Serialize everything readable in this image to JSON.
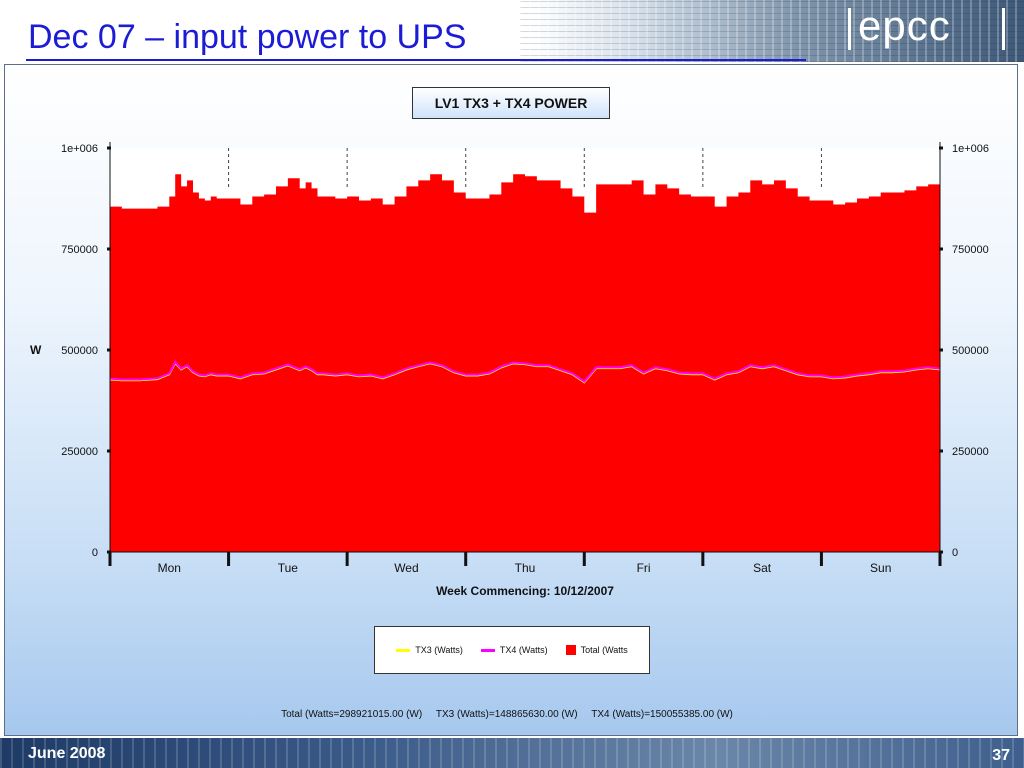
{
  "slide": {
    "title": "Dec 07 – input power to UPS",
    "logo": "epcc",
    "footer_date": "June 2008",
    "page_number": "37"
  },
  "chart_data": {
    "type": "area",
    "title": "LV1 TX3 + TX4 POWER",
    "xlabel": "Week Commencing: 10/12/2007",
    "ylabel": "W",
    "categories": [
      "Mon",
      "Tue",
      "Wed",
      "Thu",
      "Fri",
      "Sat",
      "Sun"
    ],
    "x_unit": "days since start of week",
    "xlim": [
      0,
      7
    ],
    "ylim": [
      0,
      1000000
    ],
    "yticks": [
      0,
      250000,
      500000,
      750000,
      1000000
    ],
    "ytick_labels": [
      "0",
      "250000",
      "500000",
      "750000",
      "1e+006"
    ],
    "legend_position": "bottom",
    "series": [
      {
        "name": "Total (Watts",
        "legend_label": "Total (Watts",
        "style": "area",
        "color": "#ff0000",
        "x": [
          0,
          0.1,
          0.25,
          0.4,
          0.5,
          0.55,
          0.6,
          0.65,
          0.7,
          0.75,
          0.8,
          0.85,
          0.9,
          1.0,
          1.1,
          1.2,
          1.3,
          1.4,
          1.5,
          1.6,
          1.65,
          1.7,
          1.75,
          1.8,
          1.9,
          2.0,
          2.1,
          2.2,
          2.3,
          2.4,
          2.5,
          2.6,
          2.7,
          2.8,
          2.9,
          3.0,
          3.1,
          3.2,
          3.3,
          3.4,
          3.5,
          3.6,
          3.7,
          3.8,
          3.9,
          4.0,
          4.1,
          4.2,
          4.3,
          4.4,
          4.5,
          4.6,
          4.7,
          4.8,
          4.9,
          5.0,
          5.1,
          5.2,
          5.3,
          5.4,
          5.5,
          5.6,
          5.7,
          5.8,
          5.9,
          6.0,
          6.1,
          6.2,
          6.3,
          6.4,
          6.5,
          6.6,
          6.7,
          6.8,
          6.9,
          7.0
        ],
        "y": [
          855000,
          850000,
          850000,
          855000,
          880000,
          935000,
          905000,
          920000,
          890000,
          875000,
          870000,
          880000,
          875000,
          875000,
          860000,
          880000,
          885000,
          905000,
          925000,
          900000,
          915000,
          900000,
          880000,
          880000,
          875000,
          880000,
          870000,
          875000,
          860000,
          880000,
          905000,
          920000,
          935000,
          920000,
          890000,
          875000,
          875000,
          885000,
          915000,
          935000,
          930000,
          920000,
          920000,
          900000,
          880000,
          840000,
          910000,
          910000,
          910000,
          920000,
          885000,
          910000,
          900000,
          885000,
          880000,
          880000,
          855000,
          880000,
          890000,
          920000,
          910000,
          920000,
          900000,
          880000,
          870000,
          870000,
          860000,
          865000,
          875000,
          880000,
          890000,
          890000,
          895000,
          905000,
          910000,
          905000
        ]
      },
      {
        "name": "TX3 (Watts)",
        "legend_label": "TX3 (Watts)",
        "style": "line",
        "color": "#ffff00",
        "x": [
          0,
          0.1,
          0.25,
          0.4,
          0.5,
          0.55,
          0.6,
          0.65,
          0.7,
          0.75,
          0.8,
          0.85,
          0.9,
          1.0,
          1.1,
          1.2,
          1.3,
          1.4,
          1.5,
          1.6,
          1.65,
          1.7,
          1.75,
          1.8,
          1.9,
          2.0,
          2.1,
          2.2,
          2.3,
          2.4,
          2.5,
          2.6,
          2.7,
          2.8,
          2.9,
          3.0,
          3.1,
          3.2,
          3.3,
          3.4,
          3.5,
          3.6,
          3.7,
          3.8,
          3.9,
          4.0,
          4.1,
          4.2,
          4.3,
          4.4,
          4.5,
          4.6,
          4.7,
          4.8,
          4.9,
          5.0,
          5.1,
          5.2,
          5.3,
          5.4,
          5.5,
          5.6,
          5.7,
          5.8,
          5.9,
          6.0,
          6.1,
          6.2,
          6.3,
          6.4,
          6.5,
          6.6,
          6.7,
          6.8,
          6.9,
          7.0
        ],
        "y": [
          427000,
          425000,
          425000,
          428000,
          440000,
          468000,
          452000,
          460000,
          445000,
          437000,
          435000,
          440000,
          437000,
          437000,
          430000,
          440000,
          442000,
          452000,
          462000,
          450000,
          457000,
          450000,
          440000,
          440000,
          437000,
          440000,
          435000,
          437000,
          430000,
          440000,
          452000,
          460000,
          467000,
          460000,
          445000,
          437000,
          437000,
          442000,
          457000,
          467000,
          465000,
          460000,
          460000,
          450000,
          440000,
          420000,
          455000,
          455000,
          455000,
          460000,
          442000,
          455000,
          450000,
          442000,
          440000,
          440000,
          427000,
          440000,
          445000,
          460000,
          455000,
          460000,
          450000,
          440000,
          435000,
          435000,
          430000,
          432000,
          437000,
          440000,
          445000,
          445000,
          447000,
          452000,
          455000,
          452000
        ]
      },
      {
        "name": "TX4 (Watts)",
        "legend_label": "TX4 (Watts)",
        "style": "line",
        "color": "#ff00ff",
        "x": [
          0,
          0.1,
          0.25,
          0.4,
          0.5,
          0.55,
          0.6,
          0.65,
          0.7,
          0.75,
          0.8,
          0.85,
          0.9,
          1.0,
          1.1,
          1.2,
          1.3,
          1.4,
          1.5,
          1.6,
          1.65,
          1.7,
          1.75,
          1.8,
          1.9,
          2.0,
          2.1,
          2.2,
          2.3,
          2.4,
          2.5,
          2.6,
          2.7,
          2.8,
          2.9,
          3.0,
          3.1,
          3.2,
          3.3,
          3.4,
          3.5,
          3.6,
          3.7,
          3.8,
          3.9,
          4.0,
          4.1,
          4.2,
          4.3,
          4.4,
          4.5,
          4.6,
          4.7,
          4.8,
          4.9,
          5.0,
          5.1,
          5.2,
          5.3,
          5.4,
          5.5,
          5.6,
          5.7,
          5.8,
          5.9,
          6.0,
          6.1,
          6.2,
          6.3,
          6.4,
          6.5,
          6.6,
          6.7,
          6.8,
          6.9,
          7.0
        ],
        "y": [
          429000,
          427000,
          427000,
          430000,
          442000,
          470000,
          454000,
          462000,
          447000,
          439000,
          437000,
          442000,
          439000,
          439000,
          432000,
          442000,
          444000,
          454000,
          464000,
          452000,
          459000,
          452000,
          442000,
          442000,
          439000,
          442000,
          437000,
          439000,
          432000,
          442000,
          454000,
          462000,
          469000,
          462000,
          447000,
          439000,
          439000,
          444000,
          459000,
          469000,
          467000,
          462000,
          462000,
          452000,
          442000,
          422000,
          457000,
          457000,
          457000,
          462000,
          444000,
          457000,
          452000,
          444000,
          442000,
          442000,
          429000,
          442000,
          447000,
          462000,
          457000,
          462000,
          452000,
          442000,
          437000,
          437000,
          432000,
          434000,
          439000,
          442000,
          447000,
          447000,
          449000,
          454000,
          457000,
          454000
        ]
      }
    ],
    "summary": "Total (Watts=298921015.00 (W)     TX3 (Watts)=148865630.00 (W)     TX4 (Watts)=150055385.00 (W)"
  }
}
